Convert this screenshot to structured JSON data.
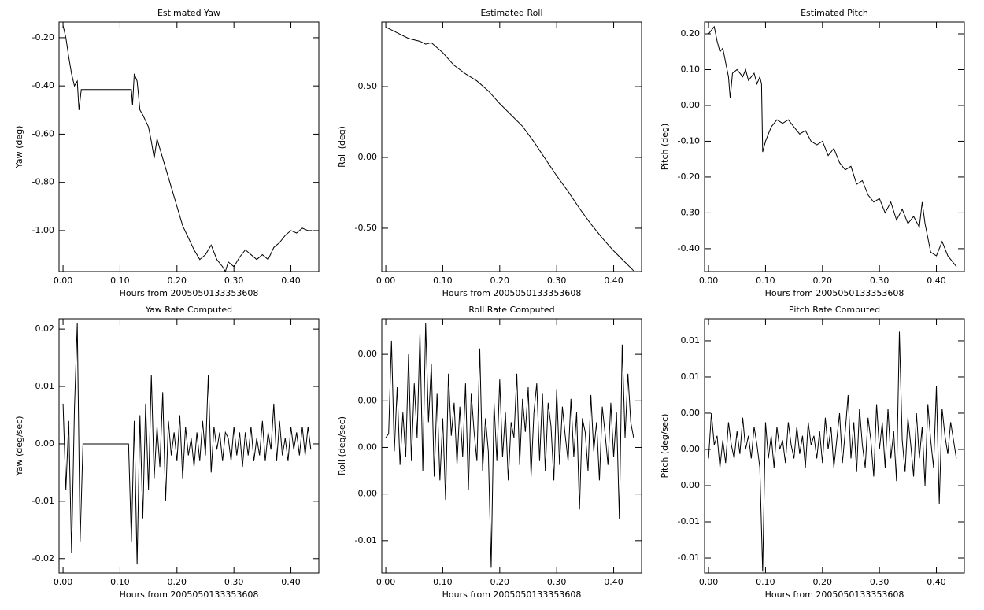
{
  "chart_data": [
    {
      "type": "line",
      "title": "Estimated Yaw",
      "xlabel": "Hours from 2005050133353608",
      "ylabel": "Yaw (deg)",
      "color": "#000000",
      "x": [
        0,
        0.005,
        0.01,
        0.015,
        0.02,
        0.025,
        0.028,
        0.032,
        0.12,
        0.122,
        0.125,
        0.13,
        0.135,
        0.14,
        0.15,
        0.155,
        0.16,
        0.165,
        0.17,
        0.18,
        0.19,
        0.2,
        0.21,
        0.22,
        0.23,
        0.24,
        0.25,
        0.26,
        0.27,
        0.28,
        0.285,
        0.29,
        0.3,
        0.31,
        0.32,
        0.33,
        0.34,
        0.35,
        0.36,
        0.37,
        0.38,
        0.39,
        0.4,
        0.41,
        0.42,
        0.43,
        0.437
      ],
      "values": [
        -0.15,
        -0.2,
        -0.28,
        -0.35,
        -0.4,
        -0.38,
        -0.5,
        -0.415,
        -0.415,
        -0.48,
        -0.35,
        -0.38,
        -0.5,
        -0.52,
        -0.57,
        -0.63,
        -0.7,
        -0.62,
        -0.66,
        -0.74,
        -0.82,
        -0.9,
        -0.98,
        -1.03,
        -1.08,
        -1.12,
        -1.1,
        -1.06,
        -1.12,
        -1.15,
        -1.17,
        -1.13,
        -1.15,
        -1.11,
        -1.08,
        -1.1,
        -1.12,
        -1.1,
        -1.12,
        -1.07,
        -1.05,
        -1.02,
        -1,
        -1.01,
        -0.99,
        -1,
        -1
      ],
      "xlim": [
        -0.007,
        0.449
      ],
      "ylim": [
        -1.17,
        -0.135
      ],
      "xticks": [
        {
          "value": 0,
          "label": "0.00"
        },
        {
          "value": 0.1,
          "label": "0.10"
        },
        {
          "value": 0.2,
          "label": "0.20"
        },
        {
          "value": 0.3,
          "label": "0.30"
        },
        {
          "value": 0.4,
          "label": "0.40"
        }
      ],
      "yticks": [
        {
          "value": -1,
          "label": "-1.00"
        },
        {
          "value": -0.8,
          "label": "-0.80"
        },
        {
          "value": -0.6,
          "label": "-0.60"
        },
        {
          "value": -0.4,
          "label": "-0.40"
        },
        {
          "value": -0.2,
          "label": "-0.20"
        }
      ]
    },
    {
      "type": "line",
      "title": "Estimated Roll",
      "xlabel": "Hours from 2005050133353608",
      "ylabel": "Roll (deg)",
      "color": "#000000",
      "x": [
        0,
        0.02,
        0.04,
        0.06,
        0.07,
        0.08,
        0.1,
        0.12,
        0.14,
        0.16,
        0.18,
        0.2,
        0.22,
        0.24,
        0.26,
        0.28,
        0.3,
        0.32,
        0.34,
        0.36,
        0.38,
        0.4,
        0.42,
        0.435
      ],
      "values": [
        0.92,
        0.88,
        0.84,
        0.82,
        0.8,
        0.81,
        0.74,
        0.65,
        0.59,
        0.54,
        0.47,
        0.38,
        0.3,
        0.22,
        0.11,
        -0.01,
        -0.13,
        -0.24,
        -0.36,
        -0.47,
        -0.57,
        -0.66,
        -0.74,
        -0.8
      ],
      "xlim": [
        -0.007,
        0.449
      ],
      "ylim": [
        -0.806,
        0.956
      ],
      "xticks": [
        {
          "value": 0,
          "label": "0.00"
        },
        {
          "value": 0.1,
          "label": "0.10"
        },
        {
          "value": 0.2,
          "label": "0.20"
        },
        {
          "value": 0.3,
          "label": "0.30"
        },
        {
          "value": 0.4,
          "label": "0.40"
        }
      ],
      "yticks": [
        {
          "value": -0.5,
          "label": "-0.50"
        },
        {
          "value": 0,
          "label": "0.00"
        },
        {
          "value": 0.5,
          "label": "0.50"
        }
      ]
    },
    {
      "type": "line",
      "title": "Estimated Pitch",
      "xlabel": "Hours from 2005050133353608",
      "ylabel": "Pitch (deg)",
      "color": "#000000",
      "x": [
        0,
        0.005,
        0.01,
        0.015,
        0.02,
        0.025,
        0.03,
        0.035,
        0.038,
        0.042,
        0.05,
        0.06,
        0.065,
        0.07,
        0.08,
        0.085,
        0.09,
        0.093,
        0.095,
        0.1,
        0.11,
        0.12,
        0.13,
        0.14,
        0.15,
        0.16,
        0.17,
        0.18,
        0.19,
        0.2,
        0.21,
        0.22,
        0.23,
        0.24,
        0.25,
        0.26,
        0.27,
        0.28,
        0.29,
        0.3,
        0.31,
        0.32,
        0.33,
        0.34,
        0.35,
        0.36,
        0.37,
        0.375,
        0.38,
        0.39,
        0.4,
        0.41,
        0.42,
        0.43,
        0.435
      ],
      "values": [
        0.2,
        0.21,
        0.22,
        0.18,
        0.15,
        0.16,
        0.12,
        0.08,
        0.02,
        0.09,
        0.1,
        0.08,
        0.1,
        0.07,
        0.09,
        0.06,
        0.08,
        0.06,
        -0.13,
        -0.1,
        -0.06,
        -0.04,
        -0.05,
        -0.04,
        -0.06,
        -0.08,
        -0.07,
        -0.1,
        -0.11,
        -0.1,
        -0.14,
        -0.12,
        -0.16,
        -0.18,
        -0.17,
        -0.22,
        -0.21,
        -0.25,
        -0.27,
        -0.26,
        -0.3,
        -0.27,
        -0.32,
        -0.29,
        -0.33,
        -0.31,
        -0.34,
        -0.27,
        -0.33,
        -0.41,
        -0.42,
        -0.38,
        -0.42,
        -0.44,
        -0.45
      ],
      "xlim": [
        -0.007,
        0.449
      ],
      "ylim": [
        -0.464,
        0.233
      ],
      "xticks": [
        {
          "value": 0,
          "label": "0.00"
        },
        {
          "value": 0.1,
          "label": "0.10"
        },
        {
          "value": 0.2,
          "label": "0.20"
        },
        {
          "value": 0.3,
          "label": "0.30"
        },
        {
          "value": 0.4,
          "label": "0.40"
        }
      ],
      "yticks": [
        {
          "value": -0.4,
          "label": "-0.40"
        },
        {
          "value": -0.3,
          "label": "-0.30"
        },
        {
          "value": -0.2,
          "label": "-0.20"
        },
        {
          "value": -0.1,
          "label": "-0.10"
        },
        {
          "value": 0,
          "label": "0.00"
        },
        {
          "value": 0.1,
          "label": "0.10"
        },
        {
          "value": 0.2,
          "label": "0.20"
        }
      ]
    },
    {
      "type": "line",
      "title": "Yaw Rate Computed",
      "xlabel": "Hours from 2005050133353608",
      "ylabel": "Yaw (deg/sec)",
      "color": "#000000",
      "x": [
        0,
        0.005,
        0.01,
        0.015,
        0.02,
        0.025,
        0.03,
        0.035,
        0.04,
        0.045,
        0.05,
        0.055,
        0.06,
        0.065,
        0.07,
        0.075,
        0.08,
        0.085,
        0.09,
        0.095,
        0.1,
        0.105,
        0.11,
        0.115,
        0.12,
        0.125,
        0.13,
        0.135,
        0.14,
        0.145,
        0.15,
        0.155,
        0.16,
        0.165,
        0.17,
        0.175,
        0.18,
        0.185,
        0.19,
        0.195,
        0.2,
        0.205,
        0.21,
        0.215,
        0.22,
        0.225,
        0.23,
        0.235,
        0.24,
        0.245,
        0.25,
        0.255,
        0.26,
        0.265,
        0.27,
        0.275,
        0.28,
        0.285,
        0.29,
        0.295,
        0.3,
        0.305,
        0.31,
        0.315,
        0.32,
        0.325,
        0.33,
        0.335,
        0.34,
        0.345,
        0.35,
        0.355,
        0.36,
        0.365,
        0.37,
        0.375,
        0.38,
        0.385,
        0.39,
        0.395,
        0.4,
        0.405,
        0.41,
        0.415,
        0.42,
        0.425,
        0.43,
        0.435
      ],
      "values": [
        0.007,
        -0.008,
        0.004,
        -0.019,
        0.006,
        0.021,
        -0.017,
        0,
        0,
        0,
        0,
        0,
        0,
        0,
        0,
        0,
        0,
        0,
        0,
        0,
        0,
        0,
        0,
        0,
        -0.017,
        0.004,
        -0.021,
        0.005,
        -0.013,
        0.007,
        -0.008,
        0.012,
        -0.006,
        0.003,
        -0.004,
        0.009,
        -0.01,
        0.004,
        -0.002,
        0.002,
        -0.003,
        0.005,
        -0.006,
        0.003,
        -0.002,
        0.001,
        -0.004,
        0.002,
        -0.003,
        0.004,
        -0.002,
        0.012,
        -0.005,
        0.003,
        -0.001,
        0.002,
        -0.003,
        0.002,
        0.001,
        -0.003,
        0.003,
        -0.002,
        0.002,
        -0.004,
        0.002,
        -0.002,
        0.003,
        -0.003,
        0.001,
        -0.002,
        0.004,
        -0.003,
        0.002,
        -0.001,
        0.007,
        -0.003,
        0.004,
        -0.002,
        0.001,
        -0.003,
        0.003,
        -0.001,
        0.002,
        -0.002,
        0.003,
        -0.002,
        0.003,
        -0.001
      ],
      "xlim": [
        -0.007,
        0.449
      ],
      "ylim": [
        -0.0225,
        0.0218
      ],
      "xticks": [
        {
          "value": 0,
          "label": "0.00"
        },
        {
          "value": 0.1,
          "label": "0.10"
        },
        {
          "value": 0.2,
          "label": "0.20"
        },
        {
          "value": 0.3,
          "label": "0.30"
        },
        {
          "value": 0.4,
          "label": "0.40"
        }
      ],
      "yticks": [
        -0.02,
        -0.01,
        {
          "value": 0,
          "label": "0.00"
        },
        0.01,
        0.02
      ]
    },
    {
      "type": "line",
      "title": "Roll Rate Computed",
      "xlabel": "Hours from 2005050133353608",
      "ylabel": "Roll (deg/sec)",
      "color": "#000000",
      "x": [
        0,
        0.005,
        0.01,
        0.015,
        0.02,
        0.025,
        0.03,
        0.035,
        0.04,
        0.045,
        0.05,
        0.055,
        0.06,
        0.065,
        0.07,
        0.075,
        0.08,
        0.085,
        0.09,
        0.095,
        0.1,
        0.105,
        0.11,
        0.115,
        0.12,
        0.125,
        0.13,
        0.135,
        0.14,
        0.145,
        0.15,
        0.155,
        0.16,
        0.165,
        0.17,
        0.175,
        0.18,
        0.185,
        0.19,
        0.195,
        0.2,
        0.205,
        0.21,
        0.215,
        0.22,
        0.225,
        0.23,
        0.235,
        0.24,
        0.245,
        0.25,
        0.255,
        0.26,
        0.265,
        0.27,
        0.275,
        0.28,
        0.285,
        0.29,
        0.295,
        0.3,
        0.305,
        0.31,
        0.315,
        0.32,
        0.325,
        0.33,
        0.335,
        0.34,
        0.345,
        0.35,
        0.355,
        0.36,
        0.365,
        0.37,
        0.375,
        0.38,
        0.385,
        0.39,
        0.395,
        0.4,
        0.405,
        0.41,
        0.415,
        0.42,
        0.425,
        0.43,
        0.435
      ],
      "values": [
        0.0002,
        0.0004,
        0.0052,
        -0.0005,
        0.0028,
        -0.0012,
        0.0015,
        -0.0008,
        0.0045,
        -0.001,
        0.003,
        0.0002,
        0.0056,
        -0.0015,
        0.0061,
        0.001,
        0.004,
        -0.0018,
        0.0025,
        -0.002,
        0.0012,
        -0.003,
        0.0035,
        0.0003,
        0.002,
        -0.0012,
        0.0018,
        -0.0008,
        0.003,
        -0.0025,
        0.0025,
        0.0005,
        -0.001,
        0.0048,
        -0.0015,
        0.0012,
        -0.0005,
        -0.0065,
        0.002,
        -0.001,
        0.0032,
        -0.0008,
        0.0015,
        -0.002,
        0.001,
        0.0002,
        0.0035,
        -0.0012,
        0.0022,
        0.0005,
        0.0028,
        -0.0018,
        0.0015,
        0.003,
        -0.001,
        0.0025,
        -0.0015,
        0.002,
        0.0008,
        -0.002,
        0.0027,
        -0.0012,
        0.0018,
        0.0003,
        -0.001,
        0.0022,
        -0.0008,
        0.0015,
        -0.0035,
        0.0012,
        0.0005,
        -0.0015,
        0.0024,
        -0.0005,
        0.001,
        -0.002,
        0.0018,
        0.0004,
        -0.0012,
        0.002,
        -0.0008,
        0.0015,
        -0.004,
        0.005,
        0.0002,
        0.0035,
        0.001,
        0.0002
      ],
      "xlim": [
        -0.007,
        0.449
      ],
      "ylim": [
        -0.00677,
        0.00633
      ],
      "xticks": [
        {
          "value": 0,
          "label": "0.00"
        },
        {
          "value": 0.1,
          "label": "0.10"
        },
        {
          "value": 0.2,
          "label": "0.20"
        },
        {
          "value": 0.3,
          "label": "0.30"
        },
        {
          "value": 0.4,
          "label": "0.40"
        }
      ],
      "yticks": [
        {
          "value": -0.0051,
          "label": "-0.01"
        },
        {
          "value": -0.0027,
          "label": "0.00"
        },
        {
          "value": -0.0003,
          "label": "0.00"
        },
        {
          "value": 0.0021,
          "label": "0.00"
        },
        {
          "value": 0.0045,
          "label": "0.00"
        }
      ]
    },
    {
      "type": "line",
      "title": "Pitch Rate Computed",
      "xlabel": "Hours from 2005050133353608",
      "ylabel": "Pitch (deg/sec)",
      "color": "#000000",
      "x": [
        0,
        0.005,
        0.01,
        0.015,
        0.02,
        0.025,
        0.03,
        0.035,
        0.04,
        0.045,
        0.05,
        0.055,
        0.06,
        0.065,
        0.07,
        0.075,
        0.08,
        0.085,
        0.09,
        0.095,
        0.1,
        0.105,
        0.11,
        0.115,
        0.12,
        0.125,
        0.13,
        0.135,
        0.14,
        0.145,
        0.15,
        0.155,
        0.16,
        0.165,
        0.17,
        0.175,
        0.18,
        0.185,
        0.19,
        0.195,
        0.2,
        0.205,
        0.21,
        0.215,
        0.22,
        0.225,
        0.23,
        0.235,
        0.24,
        0.245,
        0.25,
        0.255,
        0.26,
        0.265,
        0.27,
        0.275,
        0.28,
        0.285,
        0.29,
        0.295,
        0.3,
        0.305,
        0.31,
        0.315,
        0.32,
        0.325,
        0.33,
        0.335,
        0.34,
        0.345,
        0.35,
        0.355,
        0.36,
        0.365,
        0.37,
        0.375,
        0.38,
        0.385,
        0.39,
        0.395,
        0.4,
        0.405,
        0.41,
        0.415,
        0.42,
        0.425,
        0.43,
        0.435
      ],
      "values": [
        -0.001,
        0.004,
        0.0005,
        0.0015,
        -0.002,
        0.001,
        -0.0015,
        0.003,
        0.0005,
        -0.001,
        0.002,
        -0.0005,
        0.0035,
        0,
        0.0015,
        -0.001,
        0.0025,
        0.0005,
        -0.002,
        -0.0135,
        0.003,
        -0.001,
        0.0015,
        -0.002,
        0.0025,
        0,
        0.001,
        -0.0015,
        0.003,
        0.0005,
        -0.001,
        0.0025,
        -0.0005,
        0.0015,
        -0.002,
        0.003,
        0.0005,
        0.0015,
        -0.001,
        0.002,
        -0.0015,
        0.0035,
        0,
        0.0025,
        -0.002,
        0.001,
        0.004,
        -0.0015,
        0.002,
        0.006,
        -0.001,
        0.003,
        -0.0025,
        0.0045,
        0.0005,
        -0.002,
        0.0035,
        0.001,
        -0.003,
        0.005,
        0,
        0.003,
        -0.002,
        0.0045,
        -0.001,
        0.002,
        -0.0035,
        0.013,
        0.001,
        -0.0025,
        0.0035,
        0.0005,
        -0.003,
        0.004,
        -0.001,
        0.0025,
        -0.004,
        0.005,
        0.001,
        -0.002,
        0.007,
        -0.006,
        0.0045,
        0.0015,
        -0.0005,
        0.003,
        0.001,
        -0.001
      ],
      "xlim": [
        -0.007,
        0.449
      ],
      "ylim": [
        -0.01365,
        0.01443
      ],
      "xticks": [
        {
          "value": 0,
          "label": "0.00"
        },
        {
          "value": 0.1,
          "label": "0.10"
        },
        {
          "value": 0.2,
          "label": "0.20"
        },
        {
          "value": 0.3,
          "label": "0.30"
        },
        {
          "value": 0.4,
          "label": "0.40"
        }
      ],
      "yticks": [
        {
          "value": -0.012,
          "label": "-0.01"
        },
        {
          "value": -0.008,
          "label": "-0.01"
        },
        {
          "value": -0.004,
          "label": "0.00"
        },
        {
          "value": 0,
          "label": "0.00"
        },
        {
          "value": 0.004,
          "label": "0.00"
        },
        {
          "value": 0.008,
          "label": "0.01"
        },
        {
          "value": 0.012,
          "label": "0.01"
        }
      ]
    }
  ]
}
